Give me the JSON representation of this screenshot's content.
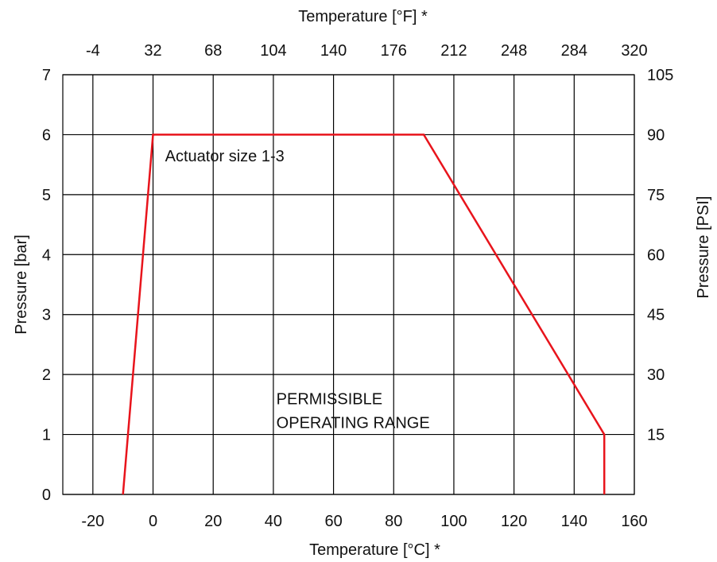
{
  "chart_data": {
    "type": "line",
    "title": "",
    "xlabel": "Temperature [°C] *",
    "x2label": "Temperature [°F] *",
    "ylabel": "Pressure [bar]",
    "y2label": "Pressure [PSI]",
    "xlim": [
      -30,
      160
    ],
    "ylim": [
      0,
      7
    ],
    "grid": true,
    "x_ticks": [
      "-20",
      "0",
      "20",
      "40",
      "60",
      "80",
      "100",
      "120",
      "140",
      "160"
    ],
    "x_tick_values": [
      -20,
      0,
      20,
      40,
      60,
      80,
      100,
      120,
      140,
      160
    ],
    "x2_ticks": [
      "-4",
      "32",
      "68",
      "104",
      "140",
      "176",
      "212",
      "248",
      "284",
      "320"
    ],
    "y_ticks": [
      "0",
      "1",
      "2",
      "3",
      "4",
      "5",
      "6",
      "7"
    ],
    "y_tick_values": [
      0,
      1,
      2,
      3,
      4,
      5,
      6,
      7
    ],
    "y2_ticks": [
      "",
      "15",
      "30",
      "45",
      "60",
      "75",
      "90",
      "105"
    ],
    "series": [
      {
        "color": "#e8141c",
        "points": [
          [
            -10,
            0
          ],
          [
            0,
            6
          ],
          [
            90,
            6
          ],
          [
            150,
            1
          ],
          [
            150,
            0
          ]
        ]
      }
    ],
    "annotations": [
      {
        "text": "Actuator size 1-3",
        "x": 4,
        "y": 5.65
      },
      {
        "text": "PERMISSIBLE",
        "x": 41,
        "y": 1.6
      },
      {
        "text": "OPERATING RANGE",
        "x": 41,
        "y": 1.2
      }
    ]
  }
}
